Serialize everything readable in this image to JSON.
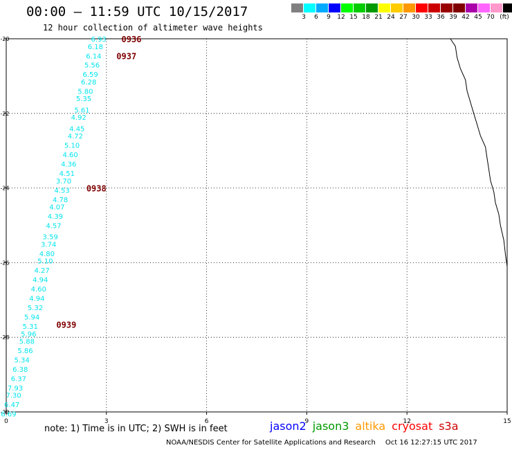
{
  "header": {
    "title": "00:00 – 11:59 UTC 10/15/2017",
    "subtitle": "12 hour collection of altimeter wave heights"
  },
  "legend": {
    "unit": "(ft)",
    "colors": [
      "#808080",
      "#00ffff",
      "#00aaff",
      "#0000ff",
      "#00ff00",
      "#00cc00",
      "#009900",
      "#ffff00",
      "#ffcc00",
      "#ff9900",
      "#ff0000",
      "#cc0000",
      "#990000",
      "#800000",
      "#aa00aa",
      "#ff66ff",
      "#ff99cc",
      "#000000"
    ],
    "labels": [
      "3",
      "6",
      "9",
      "12",
      "15",
      "18",
      "21",
      "24",
      "27",
      "30",
      "33",
      "36",
      "39",
      "42",
      "45",
      "70"
    ]
  },
  "map": {
    "x_axis": {
      "range": [
        0,
        15
      ],
      "ticks": [
        "0",
        "3",
        "6",
        "9",
        "12",
        "15"
      ]
    },
    "y_axis": {
      "range": [
        -30,
        -20
      ],
      "ticks": [
        "-20",
        "-22",
        "-24",
        "-26",
        "-28",
        "-30"
      ]
    },
    "track_color": "#00e5ee",
    "time_color": "#800000",
    "times": [
      {
        "label": "0936",
        "lon": 3.45,
        "lat": -20.0
      },
      {
        "label": "0937",
        "lon": 3.3,
        "lat": -20.45
      },
      {
        "label": "0938",
        "lon": 2.4,
        "lat": -24.0
      },
      {
        "label": "0939",
        "lon": 1.5,
        "lat": -27.65
      }
    ],
    "points": [
      {
        "lon": 3.0,
        "lat": -20.0,
        "v": "6.93"
      },
      {
        "lon": 2.9,
        "lat": -20.2,
        "v": "6.18"
      },
      {
        "lon": 2.85,
        "lat": -20.45,
        "v": "6.14"
      },
      {
        "lon": 2.8,
        "lat": -20.7,
        "v": "5.56"
      },
      {
        "lon": 2.75,
        "lat": -20.95,
        "v": "6.59"
      },
      {
        "lon": 2.7,
        "lat": -21.15,
        "v": "6.28"
      },
      {
        "lon": 2.6,
        "lat": -21.4,
        "v": "5.80"
      },
      {
        "lon": 2.55,
        "lat": -21.6,
        "v": "5.35"
      },
      {
        "lon": 2.5,
        "lat": -21.9,
        "v": "5.61"
      },
      {
        "lon": 2.4,
        "lat": -22.1,
        "v": "4.92"
      },
      {
        "lon": 2.35,
        "lat": -22.4,
        "v": "4.45"
      },
      {
        "lon": 2.3,
        "lat": -22.6,
        "v": "4.72"
      },
      {
        "lon": 2.2,
        "lat": -22.85,
        "v": "5.10"
      },
      {
        "lon": 2.15,
        "lat": -23.1,
        "v": "4.60"
      },
      {
        "lon": 2.1,
        "lat": -23.35,
        "v": "4.36"
      },
      {
        "lon": 2.05,
        "lat": -23.6,
        "v": "4.51"
      },
      {
        "lon": 1.95,
        "lat": -23.8,
        "v": "3.70"
      },
      {
        "lon": 1.9,
        "lat": -24.05,
        "v": "4.53"
      },
      {
        "lon": 1.85,
        "lat": -24.3,
        "v": "4.78"
      },
      {
        "lon": 1.75,
        "lat": -24.5,
        "v": "4.07"
      },
      {
        "lon": 1.7,
        "lat": -24.75,
        "v": "4.39"
      },
      {
        "lon": 1.65,
        "lat": -25.0,
        "v": "4.57"
      },
      {
        "lon": 1.55,
        "lat": -25.3,
        "v": "3.59"
      },
      {
        "lon": 1.5,
        "lat": -25.5,
        "v": "3.74"
      },
      {
        "lon": 1.45,
        "lat": -25.75,
        "v": "4.80"
      },
      {
        "lon": 1.4,
        "lat": -25.95,
        "v": "5.10"
      },
      {
        "lon": 1.3,
        "lat": -26.2,
        "v": "4.27"
      },
      {
        "lon": 1.25,
        "lat": -26.45,
        "v": "4.94"
      },
      {
        "lon": 1.2,
        "lat": -26.7,
        "v": "4.60"
      },
      {
        "lon": 1.15,
        "lat": -26.95,
        "v": "4.94"
      },
      {
        "lon": 1.1,
        "lat": -27.2,
        "v": "5.32"
      },
      {
        "lon": 1.0,
        "lat": -27.45,
        "v": "5.94"
      },
      {
        "lon": 0.95,
        "lat": -27.7,
        "v": "5.31"
      },
      {
        "lon": 0.9,
        "lat": -27.9,
        "v": "5.96"
      },
      {
        "lon": 0.85,
        "lat": -28.1,
        "v": "5.88"
      },
      {
        "lon": 0.8,
        "lat": -28.35,
        "v": "5.86"
      },
      {
        "lon": 0.7,
        "lat": -28.6,
        "v": "5.34"
      },
      {
        "lon": 0.65,
        "lat": -28.85,
        "v": "6.38"
      },
      {
        "lon": 0.6,
        "lat": -29.1,
        "v": "6.37"
      },
      {
        "lon": 0.5,
        "lat": -29.35,
        "v": "7.93"
      },
      {
        "lon": 0.45,
        "lat": -29.55,
        "v": "7.30"
      },
      {
        "lon": 0.4,
        "lat": -29.8,
        "v": "6.47"
      },
      {
        "lon": 0.3,
        "lat": -30.05,
        "v": "6.69"
      }
    ],
    "coastline": [
      [
        13.3,
        -20.0
      ],
      [
        13.45,
        -20.2
      ],
      [
        13.5,
        -20.5
      ],
      [
        13.6,
        -20.8
      ],
      [
        13.75,
        -21.1
      ],
      [
        13.8,
        -21.4
      ],
      [
        13.9,
        -21.7
      ],
      [
        14.0,
        -22.0
      ],
      [
        14.1,
        -22.3
      ],
      [
        14.2,
        -22.6
      ],
      [
        14.35,
        -22.9
      ],
      [
        14.4,
        -23.2
      ],
      [
        14.45,
        -23.5
      ],
      [
        14.5,
        -23.8
      ],
      [
        14.6,
        -24.1
      ],
      [
        14.65,
        -24.4
      ],
      [
        14.75,
        -24.7
      ],
      [
        14.8,
        -25.0
      ],
      [
        14.9,
        -25.4
      ],
      [
        14.95,
        -25.8
      ],
      [
        15.0,
        -26.1
      ]
    ]
  },
  "footer": {
    "note": "note: 1) Time is in UTC; 2) SWH is in feet",
    "satellites": [
      {
        "name": "jason2",
        "color": "#0000ff"
      },
      {
        "name": "jason3",
        "color": "#009900"
      },
      {
        "name": "altika",
        "color": "#ff9900"
      },
      {
        "name": "cryosat",
        "color": "#ff0000"
      },
      {
        "name": "s3a",
        "color": "#cc0000"
      }
    ],
    "credit": "NOAA/NESDIS Center for Satellite Applications and Research",
    "timestamp": "Oct 16 12:27:15 UTC 2017"
  }
}
